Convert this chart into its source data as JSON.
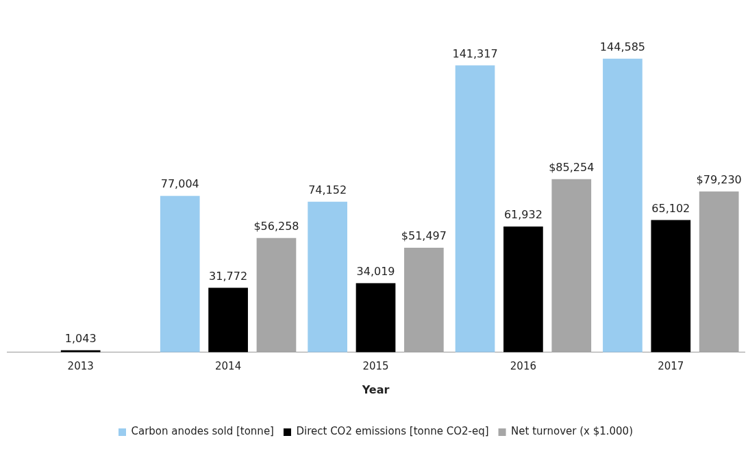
{
  "chart_data": {
    "type": "bar",
    "xlabel": "Year",
    "categories": [
      "2013",
      "2014",
      "2015",
      "2016",
      "2017"
    ],
    "series": [
      {
        "name": "Carbon anodes sold [tonne]",
        "color": "#99ccf0",
        "values": [
          null,
          77004,
          74152,
          141317,
          144585
        ],
        "value_labels": [
          null,
          "77,004",
          "74,152",
          "141,317",
          "144,585"
        ]
      },
      {
        "name": "Direct CO2 emissions [tonne CO2-eq]",
        "color": "#000000",
        "values": [
          1043,
          31772,
          34019,
          61932,
          65102
        ],
        "value_labels": [
          "1,043",
          "31,772",
          "34,019",
          "61,932",
          "65,102"
        ]
      },
      {
        "name": "Net turnover (x $1.000)",
        "color": "#a6a6a6",
        "values": [
          null,
          56258,
          51497,
          85254,
          79230
        ],
        "value_labels": [
          null,
          "$56,258",
          "$51,497",
          "$85,254",
          "$79,230"
        ]
      }
    ],
    "legend": "bottom",
    "grid": false
  }
}
